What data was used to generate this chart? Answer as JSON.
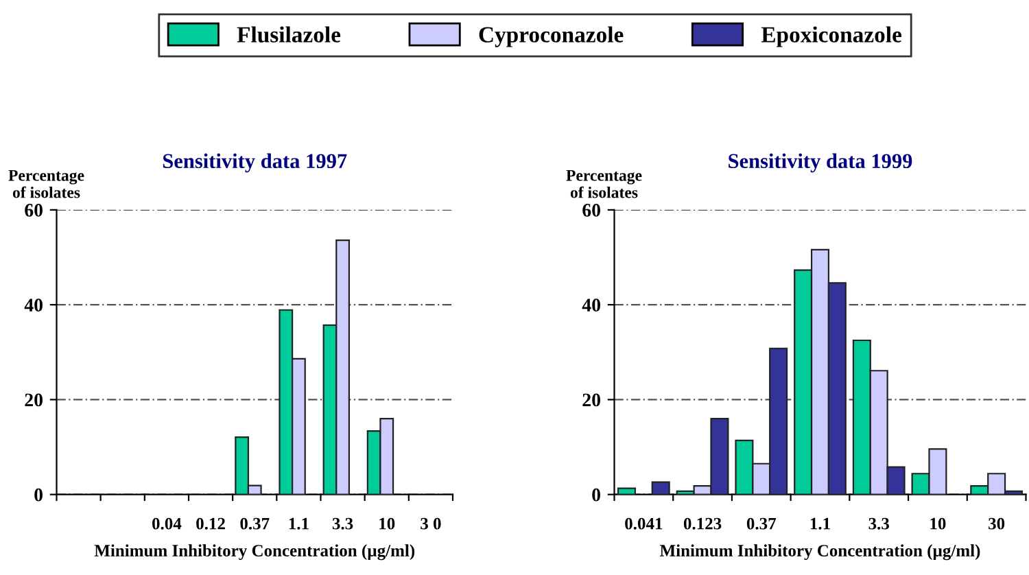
{
  "chart_data": [
    {
      "type": "bar",
      "title": "Sensitivity data 1997",
      "ylabel": "Percentage\nof isolates",
      "xlabel": "Minimum Inhibitory Concentration (µg/ml)",
      "categories": [
        null,
        null,
        "0.04",
        "0.12",
        "0.37",
        "1.1",
        "3.3",
        "10",
        "3 0"
      ],
      "series": [
        {
          "name": "Flusilazole",
          "color": "#00cc99",
          "values": [
            null,
            null,
            null,
            null,
            12.1,
            38.9,
            35.7,
            13.4,
            null
          ]
        },
        {
          "name": "Cyproconazole",
          "color": "#ccccff",
          "values": [
            null,
            null,
            null,
            null,
            1.9,
            28.6,
            53.6,
            16.0,
            null
          ]
        },
        {
          "name": "Epoxiconazole",
          "color": "#333399",
          "values": [
            null,
            null,
            null,
            null,
            null,
            null,
            null,
            null,
            null
          ]
        }
      ],
      "ylim": [
        0,
        60
      ],
      "yticks": [
        0,
        20,
        40,
        60
      ],
      "grid": "y",
      "legend": "top"
    },
    {
      "type": "bar",
      "title": "Sensitivity data 1999",
      "ylabel": "Percentage\nof isolates",
      "xlabel": "Minimum Inhibitory Concentration (µg/ml)",
      "categories": [
        "0.041",
        "0.123",
        "0.37",
        "1.1",
        "3.3",
        "10",
        "30"
      ],
      "series": [
        {
          "color": "#00cc99",
          "values": [
            1.3,
            0.7,
            11.4,
            47.3,
            32.5,
            4.4,
            1.8
          ]
        },
        {
          "color": "#ccccff",
          "values": [
            null,
            1.8,
            6.5,
            51.6,
            26.1,
            9.6,
            4.4
          ]
        },
        {
          "color": "#333399",
          "values": [
            2.6,
            16.0,
            30.8,
            44.6,
            5.8,
            null,
            0.7
          ]
        }
      ],
      "ylim": [
        0,
        60
      ],
      "yticks": [
        0,
        20,
        40,
        60
      ],
      "grid": "y",
      "legend": false
    }
  ]
}
